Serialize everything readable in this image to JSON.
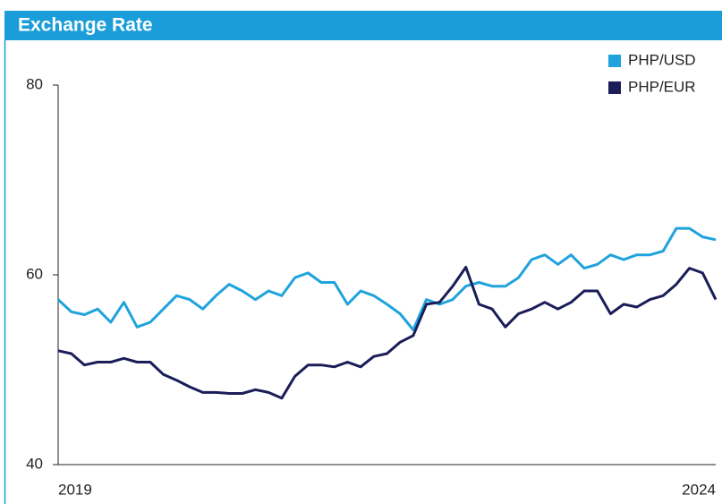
{
  "chart_data": {
    "type": "line",
    "title": "Exchange Rate",
    "x": [
      2019.0,
      2019.1,
      2019.2,
      2019.3,
      2019.4,
      2019.5,
      2019.6,
      2019.7,
      2019.8,
      2019.9,
      2020.0,
      2020.1,
      2020.2,
      2020.3,
      2020.4,
      2020.5,
      2020.6,
      2020.7,
      2020.8,
      2020.9,
      2021.0,
      2021.1,
      2021.2,
      2021.3,
      2021.4,
      2021.5,
      2021.6,
      2021.7,
      2021.8,
      2021.9,
      2022.0,
      2022.1,
      2022.2,
      2022.3,
      2022.4,
      2022.5,
      2022.6,
      2022.7,
      2022.8,
      2022.9,
      2023.0,
      2023.1,
      2023.2,
      2023.3,
      2023.4,
      2023.5,
      2023.6,
      2023.7,
      2023.8,
      2023.9,
      2024.0
    ],
    "series": [
      {
        "name": "PHP/USD",
        "color": "#1fa3dc",
        "values": [
          57.4,
          56.1,
          55.8,
          56.4,
          55,
          57.1,
          54.5,
          55,
          56.4,
          57.8,
          57.4,
          56.4,
          57.8,
          59,
          58.3,
          57.4,
          58.3,
          57.8,
          59.7,
          60.2,
          59.2,
          59.2,
          56.9,
          58.3,
          57.8,
          56.9,
          55.9,
          54.2,
          57.4,
          56.9,
          57.4,
          58.8,
          59.2,
          58.8,
          58.8,
          59.7,
          61.6,
          62.1,
          61.1,
          62.1,
          60.7,
          61.1,
          62.1,
          61.6,
          62.1,
          62.1,
          62.5,
          64.9,
          64.9,
          64.0,
          63.7
        ]
      },
      {
        "name": "PHP/EUR",
        "color": "#1a1d58",
        "values": [
          52,
          51.7,
          50.5,
          50.8,
          50.8,
          51.2,
          50.8,
          50.8,
          49.5,
          48.9,
          48.2,
          47.6,
          47.6,
          47.5,
          47.5,
          47.9,
          47.6,
          47,
          49.3,
          50.5,
          50.5,
          50.3,
          50.8,
          50.3,
          51.4,
          51.7,
          52.9,
          53.6,
          56.9,
          57.1,
          58.8,
          60.8,
          56.9,
          56.4,
          54.5,
          55.9,
          56.4,
          57.1,
          56.4,
          57.1,
          58.3,
          58.3,
          55.9,
          56.9,
          56.6,
          57.4,
          57.8,
          59,
          60.7,
          60.2,
          57.4
        ]
      }
    ],
    "xlim": [
      2019,
      2024
    ],
    "xticks": [
      2019,
      2024
    ],
    "ylim": [
      40,
      80
    ],
    "yticks": [
      40,
      60,
      80
    ],
    "grid": false,
    "legend": "upper right"
  }
}
